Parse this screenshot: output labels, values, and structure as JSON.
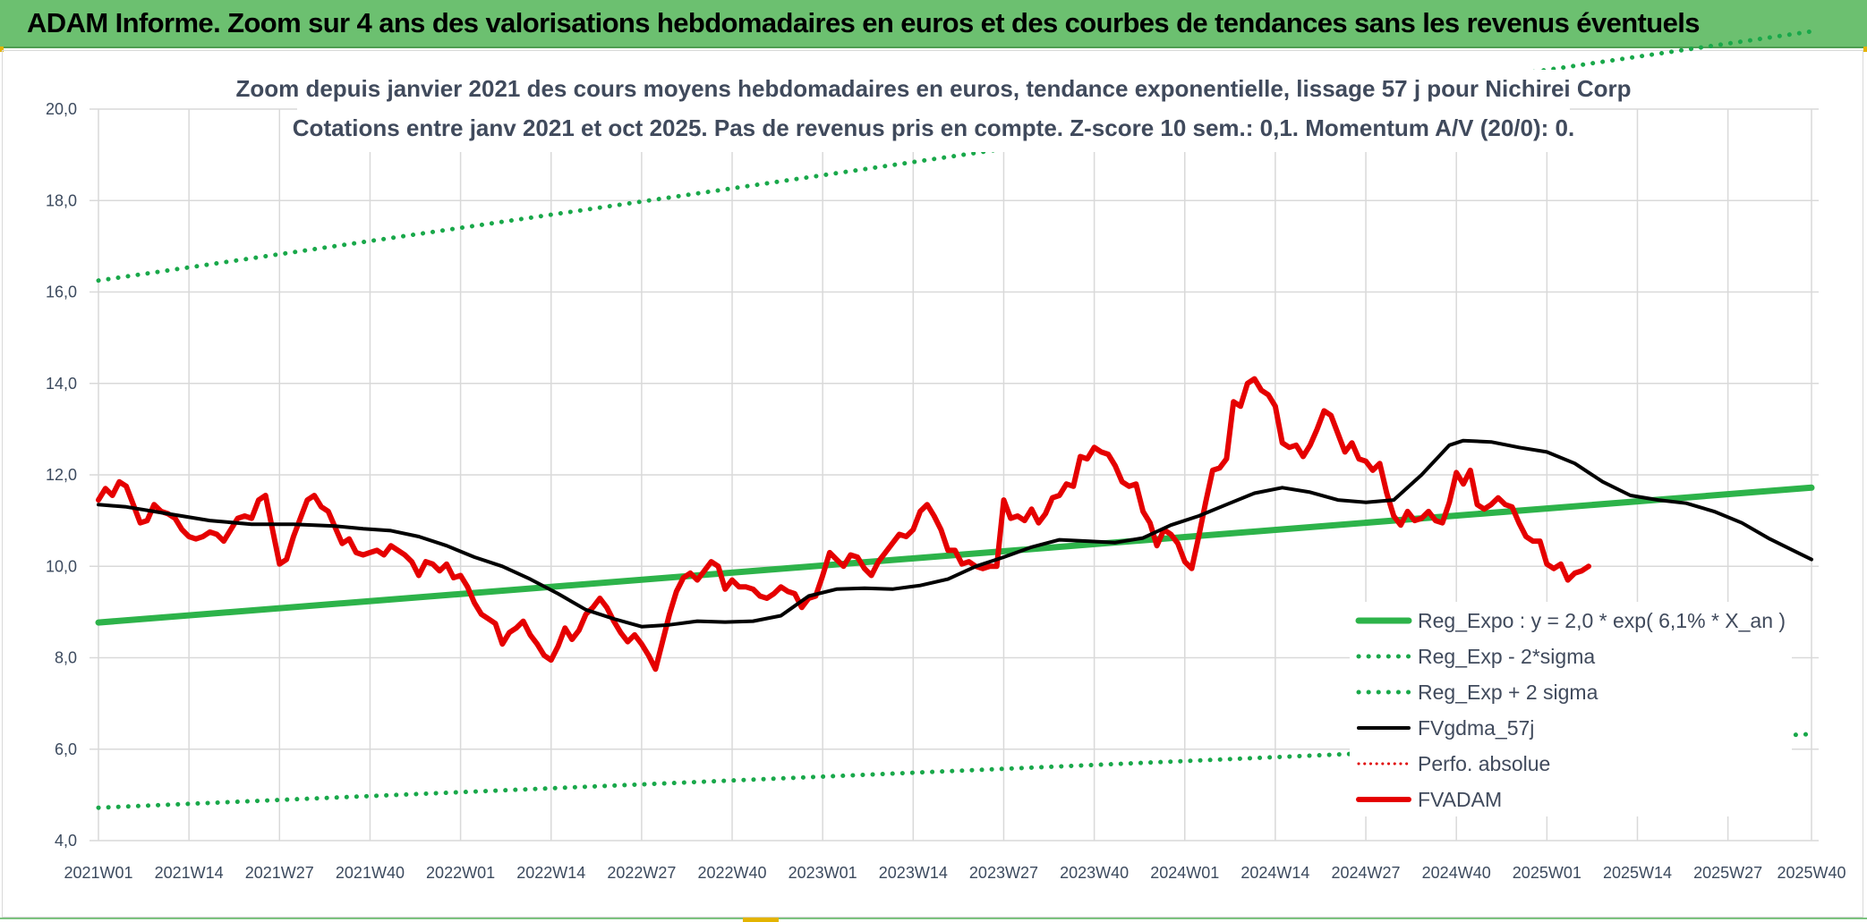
{
  "banner": {
    "title": "ADAM Informe. Zoom sur 4 ans des valorisations hebdomadaires en euros et des courbes de tendances sans les revenus éventuels"
  },
  "chart_data": {
    "type": "line",
    "title": "Zoom depuis janvier 2021 des cours moyens hebdomadaires en euros, tendance exponentielle, lissage 57 j pour Nichirei Corp",
    "subtitle": "Cotations entre janv 2021 et oct 2025. Pas de revenus pris en compte. Z-score 10 sem.: 0,1. Momentum A/V (20/0): 0.",
    "xlabel": "",
    "ylabel": "",
    "ylim": [
      4,
      20
    ],
    "yticks": [
      "4,0",
      "6,0",
      "8,0",
      "10,0",
      "12,0",
      "14,0",
      "16,0",
      "18,0",
      "20,0"
    ],
    "x_range_weeks": [
      0,
      246
    ],
    "xticks": [
      {
        "label": "2021W01",
        "week": 0
      },
      {
        "label": "2021W14",
        "week": 13
      },
      {
        "label": "2021W27",
        "week": 26
      },
      {
        "label": "2021W40",
        "week": 39
      },
      {
        "label": "2022W01",
        "week": 52
      },
      {
        "label": "2022W14",
        "week": 65
      },
      {
        "label": "2022W27",
        "week": 78
      },
      {
        "label": "2022W40",
        "week": 91
      },
      {
        "label": "2023W01",
        "week": 104
      },
      {
        "label": "2023W14",
        "week": 117
      },
      {
        "label": "2023W27",
        "week": 130
      },
      {
        "label": "2023W40",
        "week": 143
      },
      {
        "label": "2024W01",
        "week": 156
      },
      {
        "label": "2024W14",
        "week": 169
      },
      {
        "label": "2024W27",
        "week": 182
      },
      {
        "label": "2024W40",
        "week": 195
      },
      {
        "label": "2025W01",
        "week": 208
      },
      {
        "label": "2025W14",
        "week": 221
      },
      {
        "label": "2025W27",
        "week": 234
      },
      {
        "label": "2025W40",
        "week": 246
      }
    ],
    "grid": true,
    "legend_position": "bottom-right",
    "series": [
      {
        "name": "Reg_Expo : y = 2,0 * exp( 6,1% *  X_an )",
        "color": "#2db34a",
        "style": "solid",
        "width": 7,
        "points": [
          [
            0,
            8.77
          ],
          [
            246,
            11.72
          ]
        ]
      },
      {
        "name": "Reg_Exp - 2*sigma",
        "color": "#19a84a",
        "style": "dotted",
        "width": 5,
        "points": [
          [
            0,
            4.72
          ],
          [
            246,
            6.33
          ]
        ]
      },
      {
        "name": "Reg_Exp + 2 sigma",
        "color": "#19a84a",
        "style": "dotted",
        "width": 5,
        "points": [
          [
            0,
            16.25
          ],
          [
            246,
            21.7
          ]
        ]
      },
      {
        "name": "FVgdma_57j",
        "color": "#000000",
        "style": "solid",
        "width": 4,
        "points": [
          [
            0,
            11.35
          ],
          [
            4,
            11.3
          ],
          [
            10,
            11.15
          ],
          [
            16,
            11.0
          ],
          [
            22,
            10.92
          ],
          [
            28,
            10.92
          ],
          [
            34,
            10.88
          ],
          [
            38,
            10.82
          ],
          [
            42,
            10.78
          ],
          [
            46,
            10.65
          ],
          [
            50,
            10.45
          ],
          [
            54,
            10.2
          ],
          [
            58,
            10.0
          ],
          [
            62,
            9.72
          ],
          [
            66,
            9.4
          ],
          [
            70,
            9.05
          ],
          [
            74,
            8.85
          ],
          [
            78,
            8.68
          ],
          [
            82,
            8.72
          ],
          [
            86,
            8.8
          ],
          [
            90,
            8.78
          ],
          [
            94,
            8.8
          ],
          [
            98,
            8.92
          ],
          [
            102,
            9.35
          ],
          [
            106,
            9.5
          ],
          [
            110,
            9.52
          ],
          [
            114,
            9.5
          ],
          [
            118,
            9.58
          ],
          [
            122,
            9.72
          ],
          [
            126,
            10.0
          ],
          [
            130,
            10.2
          ],
          [
            134,
            10.42
          ],
          [
            138,
            10.58
          ],
          [
            142,
            10.55
          ],
          [
            146,
            10.52
          ],
          [
            150,
            10.62
          ],
          [
            154,
            10.9
          ],
          [
            158,
            11.1
          ],
          [
            162,
            11.35
          ],
          [
            166,
            11.6
          ],
          [
            170,
            11.72
          ],
          [
            174,
            11.62
          ],
          [
            178,
            11.45
          ],
          [
            182,
            11.4
          ],
          [
            186,
            11.45
          ],
          [
            190,
            12.0
          ],
          [
            194,
            12.65
          ],
          [
            196,
            12.75
          ],
          [
            200,
            12.72
          ],
          [
            204,
            12.6
          ],
          [
            208,
            12.5
          ],
          [
            212,
            12.25
          ],
          [
            216,
            11.85
          ],
          [
            220,
            11.55
          ],
          [
            224,
            11.45
          ],
          [
            228,
            11.38
          ],
          [
            232,
            11.2
          ],
          [
            236,
            10.95
          ],
          [
            240,
            10.6
          ],
          [
            244,
            10.3
          ],
          [
            246,
            10.15
          ]
        ]
      },
      {
        "name": "Perfo. absolue",
        "color": "#e00000",
        "style": "dotted",
        "width": 3,
        "points": []
      },
      {
        "name": "FVADAM",
        "color": "#e50000",
        "style": "solid",
        "width": 6,
        "points": [
          [
            0,
            11.45
          ],
          [
            1,
            11.7
          ],
          [
            2,
            11.55
          ],
          [
            3,
            11.85
          ],
          [
            4,
            11.75
          ],
          [
            5,
            11.35
          ],
          [
            6,
            10.95
          ],
          [
            7,
            11.0
          ],
          [
            8,
            11.35
          ],
          [
            9,
            11.2
          ],
          [
            10,
            11.15
          ],
          [
            11,
            11.05
          ],
          [
            12,
            10.8
          ],
          [
            13,
            10.65
          ],
          [
            14,
            10.6
          ],
          [
            15,
            10.65
          ],
          [
            16,
            10.75
          ],
          [
            17,
            10.7
          ],
          [
            18,
            10.55
          ],
          [
            19,
            10.8
          ],
          [
            20,
            11.05
          ],
          [
            21,
            11.1
          ],
          [
            22,
            11.05
          ],
          [
            23,
            11.45
          ],
          [
            24,
            11.55
          ],
          [
            25,
            10.8
          ],
          [
            26,
            10.05
          ],
          [
            27,
            10.15
          ],
          [
            28,
            10.65
          ],
          [
            29,
            11.05
          ],
          [
            30,
            11.45
          ],
          [
            31,
            11.55
          ],
          [
            32,
            11.3
          ],
          [
            33,
            11.2
          ],
          [
            34,
            10.85
          ],
          [
            35,
            10.5
          ],
          [
            36,
            10.6
          ],
          [
            37,
            10.3
          ],
          [
            38,
            10.25
          ],
          [
            39,
            10.3
          ],
          [
            40,
            10.35
          ],
          [
            41,
            10.25
          ],
          [
            42,
            10.45
          ],
          [
            43,
            10.35
          ],
          [
            44,
            10.25
          ],
          [
            45,
            10.1
          ],
          [
            46,
            9.8
          ],
          [
            47,
            10.1
          ],
          [
            48,
            10.05
          ],
          [
            49,
            9.9
          ],
          [
            50,
            10.05
          ],
          [
            51,
            9.75
          ],
          [
            52,
            9.8
          ],
          [
            53,
            9.55
          ],
          [
            54,
            9.2
          ],
          [
            55,
            8.95
          ],
          [
            56,
            8.85
          ],
          [
            57,
            8.75
          ],
          [
            58,
            8.3
          ],
          [
            59,
            8.55
          ],
          [
            60,
            8.65
          ],
          [
            61,
            8.8
          ],
          [
            62,
            8.5
          ],
          [
            63,
            8.3
          ],
          [
            64,
            8.05
          ],
          [
            65,
            7.95
          ],
          [
            66,
            8.25
          ],
          [
            67,
            8.65
          ],
          [
            68,
            8.4
          ],
          [
            69,
            8.6
          ],
          [
            70,
            8.95
          ],
          [
            71,
            9.1
          ],
          [
            72,
            9.3
          ],
          [
            73,
            9.1
          ],
          [
            74,
            8.8
          ],
          [
            75,
            8.55
          ],
          [
            76,
            8.35
          ],
          [
            77,
            8.5
          ],
          [
            78,
            8.3
          ],
          [
            79,
            8.05
          ],
          [
            80,
            7.75
          ],
          [
            81,
            8.35
          ],
          [
            82,
            8.95
          ],
          [
            83,
            9.45
          ],
          [
            84,
            9.75
          ],
          [
            85,
            9.85
          ],
          [
            86,
            9.7
          ],
          [
            87,
            9.9
          ],
          [
            88,
            10.1
          ],
          [
            89,
            10.0
          ],
          [
            90,
            9.5
          ],
          [
            91,
            9.7
          ],
          [
            92,
            9.55
          ],
          [
            93,
            9.55
          ],
          [
            94,
            9.5
          ],
          [
            95,
            9.35
          ],
          [
            96,
            9.3
          ],
          [
            97,
            9.4
          ],
          [
            98,
            9.55
          ],
          [
            99,
            9.45
          ],
          [
            100,
            9.4
          ],
          [
            101,
            9.1
          ],
          [
            102,
            9.3
          ],
          [
            103,
            9.35
          ],
          [
            104,
            9.8
          ],
          [
            105,
            10.3
          ],
          [
            106,
            10.15
          ],
          [
            107,
            10.0
          ],
          [
            108,
            10.25
          ],
          [
            109,
            10.2
          ],
          [
            110,
            9.95
          ],
          [
            111,
            9.8
          ],
          [
            112,
            10.1
          ],
          [
            113,
            10.3
          ],
          [
            114,
            10.5
          ],
          [
            115,
            10.7
          ],
          [
            116,
            10.65
          ],
          [
            117,
            10.8
          ],
          [
            118,
            11.2
          ],
          [
            119,
            11.35
          ],
          [
            120,
            11.1
          ],
          [
            121,
            10.8
          ],
          [
            122,
            10.35
          ],
          [
            123,
            10.35
          ],
          [
            124,
            10.05
          ],
          [
            125,
            10.1
          ],
          [
            126,
            10.0
          ],
          [
            127,
            9.95
          ],
          [
            128,
            10.0
          ],
          [
            129,
            10.0
          ],
          [
            130,
            11.45
          ],
          [
            131,
            11.05
          ],
          [
            132,
            11.1
          ],
          [
            133,
            11.0
          ],
          [
            134,
            11.25
          ],
          [
            135,
            10.95
          ],
          [
            136,
            11.15
          ],
          [
            137,
            11.5
          ],
          [
            138,
            11.55
          ],
          [
            139,
            11.8
          ],
          [
            140,
            11.75
          ],
          [
            141,
            12.4
          ],
          [
            142,
            12.35
          ],
          [
            143,
            12.6
          ],
          [
            144,
            12.5
          ],
          [
            145,
            12.45
          ],
          [
            146,
            12.2
          ],
          [
            147,
            11.85
          ],
          [
            148,
            11.75
          ],
          [
            149,
            11.8
          ],
          [
            150,
            11.2
          ],
          [
            151,
            10.95
          ],
          [
            152,
            10.45
          ],
          [
            153,
            10.8
          ],
          [
            154,
            10.7
          ],
          [
            155,
            10.5
          ],
          [
            156,
            10.1
          ],
          [
            157,
            9.95
          ],
          [
            158,
            10.65
          ],
          [
            159,
            11.4
          ],
          [
            160,
            12.1
          ],
          [
            161,
            12.15
          ],
          [
            162,
            12.35
          ],
          [
            163,
            13.6
          ],
          [
            164,
            13.5
          ],
          [
            165,
            14.0
          ],
          [
            166,
            14.1
          ],
          [
            167,
            13.85
          ],
          [
            168,
            13.75
          ],
          [
            169,
            13.5
          ],
          [
            170,
            12.7
          ],
          [
            171,
            12.6
          ],
          [
            172,
            12.65
          ],
          [
            173,
            12.4
          ],
          [
            174,
            12.65
          ],
          [
            175,
            13.0
          ],
          [
            176,
            13.4
          ],
          [
            177,
            13.3
          ],
          [
            178,
            12.9
          ],
          [
            179,
            12.5
          ],
          [
            180,
            12.7
          ],
          [
            181,
            12.35
          ],
          [
            182,
            12.3
          ],
          [
            183,
            12.1
          ],
          [
            184,
            12.25
          ],
          [
            185,
            11.6
          ],
          [
            186,
            11.1
          ],
          [
            187,
            10.9
          ],
          [
            188,
            11.2
          ],
          [
            189,
            11.0
          ],
          [
            190,
            11.05
          ],
          [
            191,
            11.2
          ],
          [
            192,
            11.0
          ],
          [
            193,
            10.95
          ],
          [
            194,
            11.4
          ],
          [
            195,
            12.05
          ],
          [
            196,
            11.8
          ],
          [
            197,
            12.1
          ],
          [
            198,
            11.35
          ],
          [
            199,
            11.25
          ],
          [
            200,
            11.35
          ],
          [
            201,
            11.5
          ],
          [
            202,
            11.35
          ],
          [
            203,
            11.3
          ],
          [
            204,
            10.95
          ],
          [
            205,
            10.65
          ],
          [
            206,
            10.55
          ],
          [
            207,
            10.55
          ],
          [
            208,
            10.05
          ],
          [
            209,
            9.95
          ],
          [
            210,
            10.05
          ],
          [
            211,
            9.7
          ],
          [
            212,
            9.85
          ],
          [
            213,
            9.9
          ],
          [
            214,
            10.0
          ]
        ]
      }
    ]
  }
}
